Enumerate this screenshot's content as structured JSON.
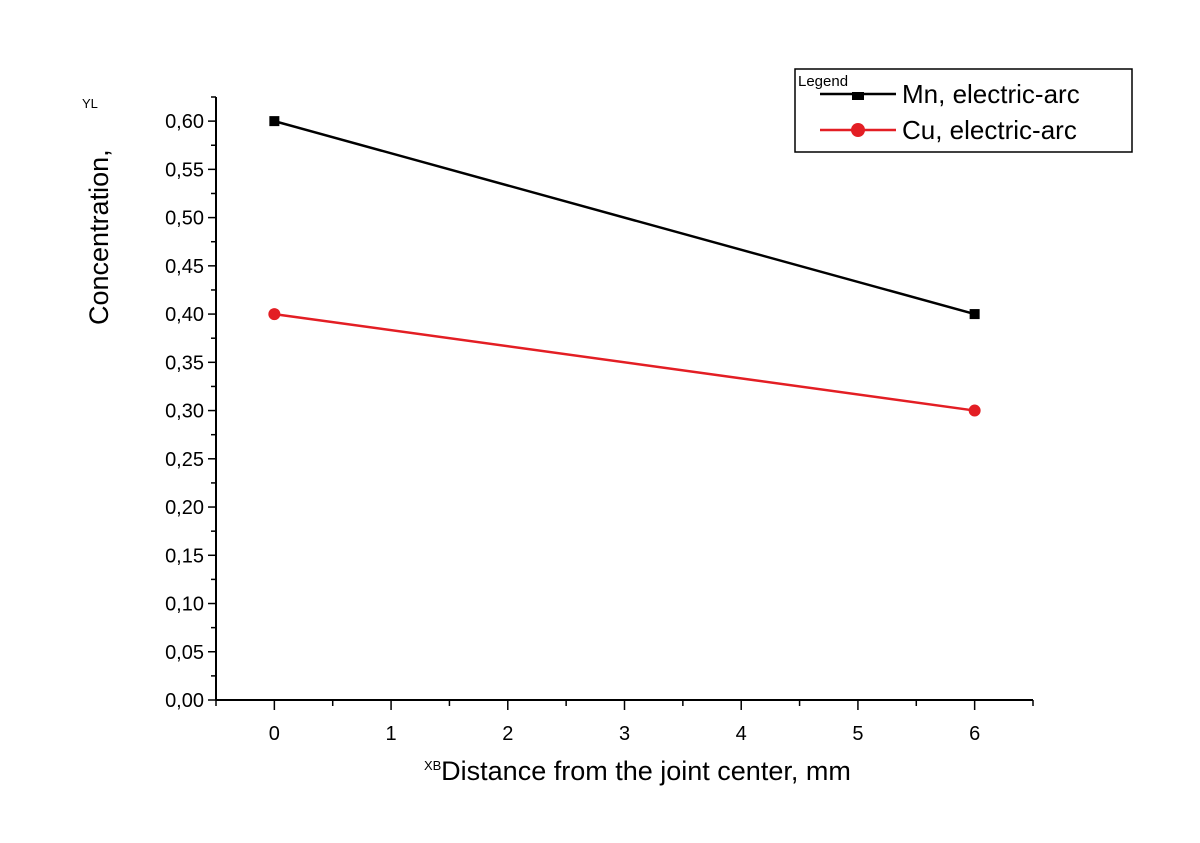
{
  "chart_data": {
    "type": "line",
    "title": "",
    "xlabel": "Distance from the joint center, mm",
    "ylabel": "Concentration,",
    "xlabel_marker": "XB",
    "ylabel_marker": "YL",
    "xlim": [
      -0.5,
      6.5
    ],
    "ylim": [
      0,
      0.625
    ],
    "xticks": [
      0,
      1,
      2,
      3,
      4,
      5,
      6
    ],
    "xtick_labels": [
      "0",
      "1",
      "2",
      "3",
      "4",
      "5",
      "6"
    ],
    "yticks": [
      0,
      0.05,
      0.1,
      0.15,
      0.2,
      0.25,
      0.3,
      0.35,
      0.4,
      0.45,
      0.5,
      0.55,
      0.6
    ],
    "ytick_labels": [
      "0,00",
      "0,05",
      "0,10",
      "0,15",
      "0,20",
      "0,25",
      "0,30",
      "0,35",
      "0,40",
      "0,45",
      "0,50",
      "0,55",
      "0,60"
    ],
    "grid": false,
    "legend": {
      "title": "Legend",
      "placement": "top-right"
    },
    "series": [
      {
        "name": "Mn, electric-arc",
        "color": "#000000",
        "marker": "square",
        "x": [
          0,
          6
        ],
        "y": [
          0.6,
          0.4
        ]
      },
      {
        "name": "Cu, electric-arc",
        "color": "#e31e24",
        "marker": "circle",
        "x": [
          0,
          6
        ],
        "y": [
          0.4,
          0.3
        ]
      }
    ]
  }
}
